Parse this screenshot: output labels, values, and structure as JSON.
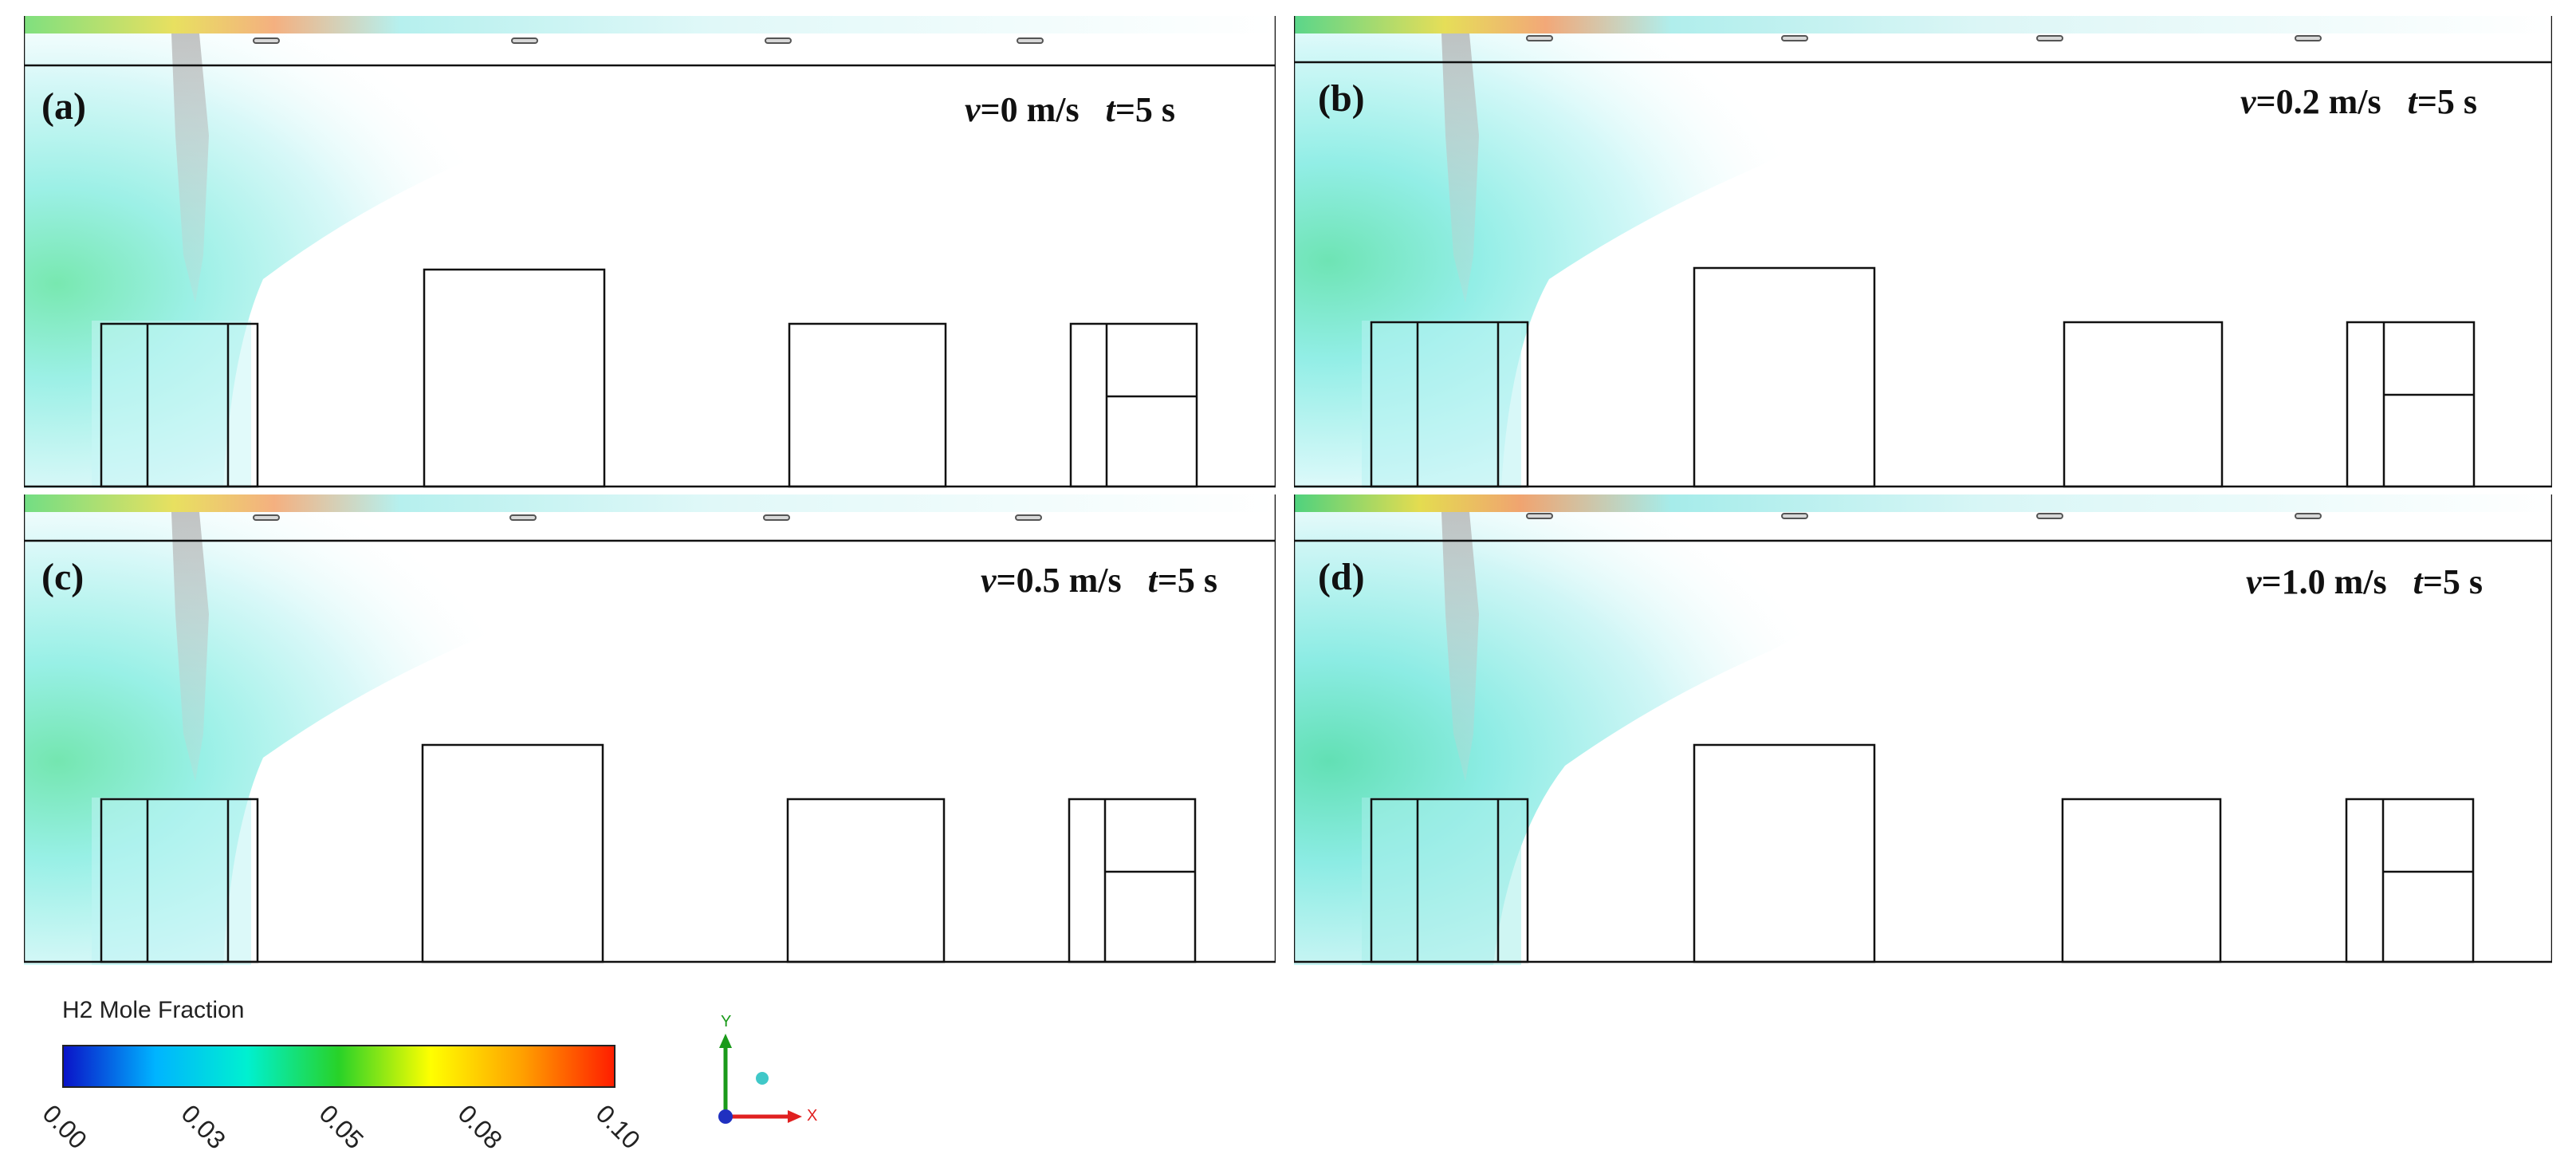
{
  "panels": [
    {
      "label": "(a)",
      "velocity_var": "v",
      "velocity_value": "=0 m/s",
      "time_var": "t",
      "time_value": "=5 s"
    },
    {
      "label": "(b)",
      "velocity_var": "v",
      "velocity_value": "=0.2 m/s",
      "time_var": "t",
      "time_value": "=5 s"
    },
    {
      "label": "(c)",
      "velocity_var": "v",
      "velocity_value": "=0.5 m/s",
      "time_var": "t",
      "time_value": "=5 s"
    },
    {
      "label": "(d)",
      "velocity_var": "v",
      "velocity_value": "=1.0 m/s",
      "time_var": "t",
      "time_value": "=5 s"
    }
  ],
  "legend": {
    "title": "H2 Mole Fraction",
    "ticks": [
      "0.00",
      "0.03",
      "0.05",
      "0.08",
      "0.10"
    ],
    "colors": [
      "#0a14c8",
      "#00b4ff",
      "#00f0d0",
      "#28d228",
      "#ffff00",
      "#ffa000",
      "#ff1e00"
    ]
  },
  "axes": {
    "y_label": "Y",
    "x_label": "X",
    "y_color": "#1a9a1a",
    "x_color": "#e02020"
  }
}
